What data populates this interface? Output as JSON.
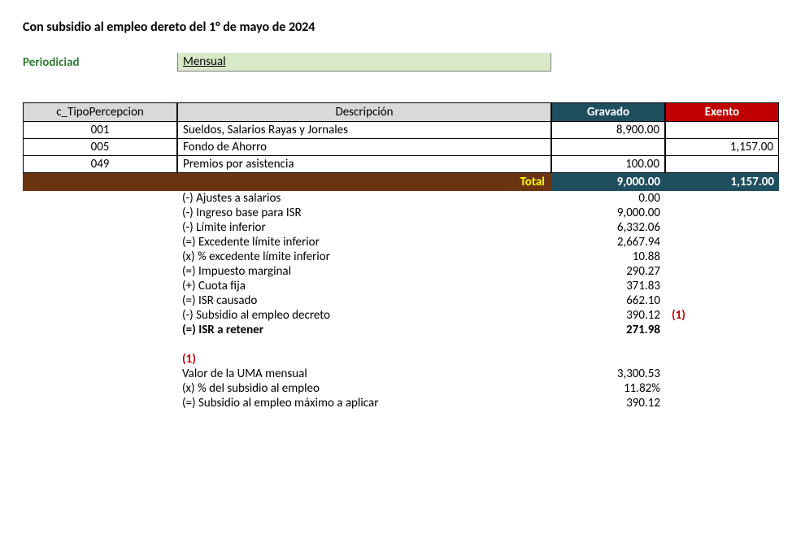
{
  "title": "Con subsidio al empleo dereto del 1° de mayo de 2024",
  "periodicity": {
    "label": "Periodiciad",
    "value": "Mensual"
  },
  "headers": {
    "codigo": "c_TipoPercepcion",
    "descripcion": "Descripción",
    "gravado": "Gravado",
    "exento": "Exento"
  },
  "rows": [
    {
      "code": "001",
      "desc": "Sueldos, Salarios  Rayas y Jornales",
      "gravado": "8,900.00",
      "exento": ""
    },
    {
      "code": "005",
      "desc": "Fondo de Ahorro",
      "gravado": "",
      "exento": "1,157.00"
    },
    {
      "code": "049",
      "desc": "Premios por asistencia",
      "gravado": "100.00",
      "exento": ""
    }
  ],
  "total": {
    "label": "Total",
    "gravado": "9,000.00",
    "exento": "1,157.00"
  },
  "calc": [
    {
      "label": "(-) Ajustes a salarios",
      "value": "0.00"
    },
    {
      "label": "(-) Ingreso base para ISR",
      "value": "9,000.00"
    },
    {
      "label": "(-) Límite inferior",
      "value": "6,332.06"
    },
    {
      "label": "(=) Excedente límite inferior",
      "value": "2,667.94"
    },
    {
      "label": "(x) % excedente límite inferior",
      "value": "10.88"
    },
    {
      "label": "(=) Impuesto marginal",
      "value": "290.27"
    },
    {
      "label": "(+) Cuota fija",
      "value": "371.83"
    },
    {
      "label": "(=) ISR causado",
      "value": "662.10"
    },
    {
      "label": "(-) Subsidio al empleo decreto",
      "value": "390.12",
      "ref": "(1)"
    },
    {
      "label": "(=) ISR a retener",
      "value": "271.98",
      "bold": true
    }
  ],
  "footnote_ref": "(1)",
  "footnote": [
    {
      "label": "Valor de la UMA mensual",
      "value": "3,300.53"
    },
    {
      "label": "(x) % del subsidio al empleo",
      "value": "11.82%"
    },
    {
      "label": "(=) Subsidio al empleo máximo a aplicar",
      "value": "390.12"
    }
  ],
  "colors": {
    "header_gray": "#d9d9d9",
    "teal": "#1f4e5f",
    "red": "#c00000",
    "brown": "#6b3410",
    "yellow": "#ffff00",
    "green_fill": "#d8e9c8",
    "green_text": "#2e7d32"
  }
}
